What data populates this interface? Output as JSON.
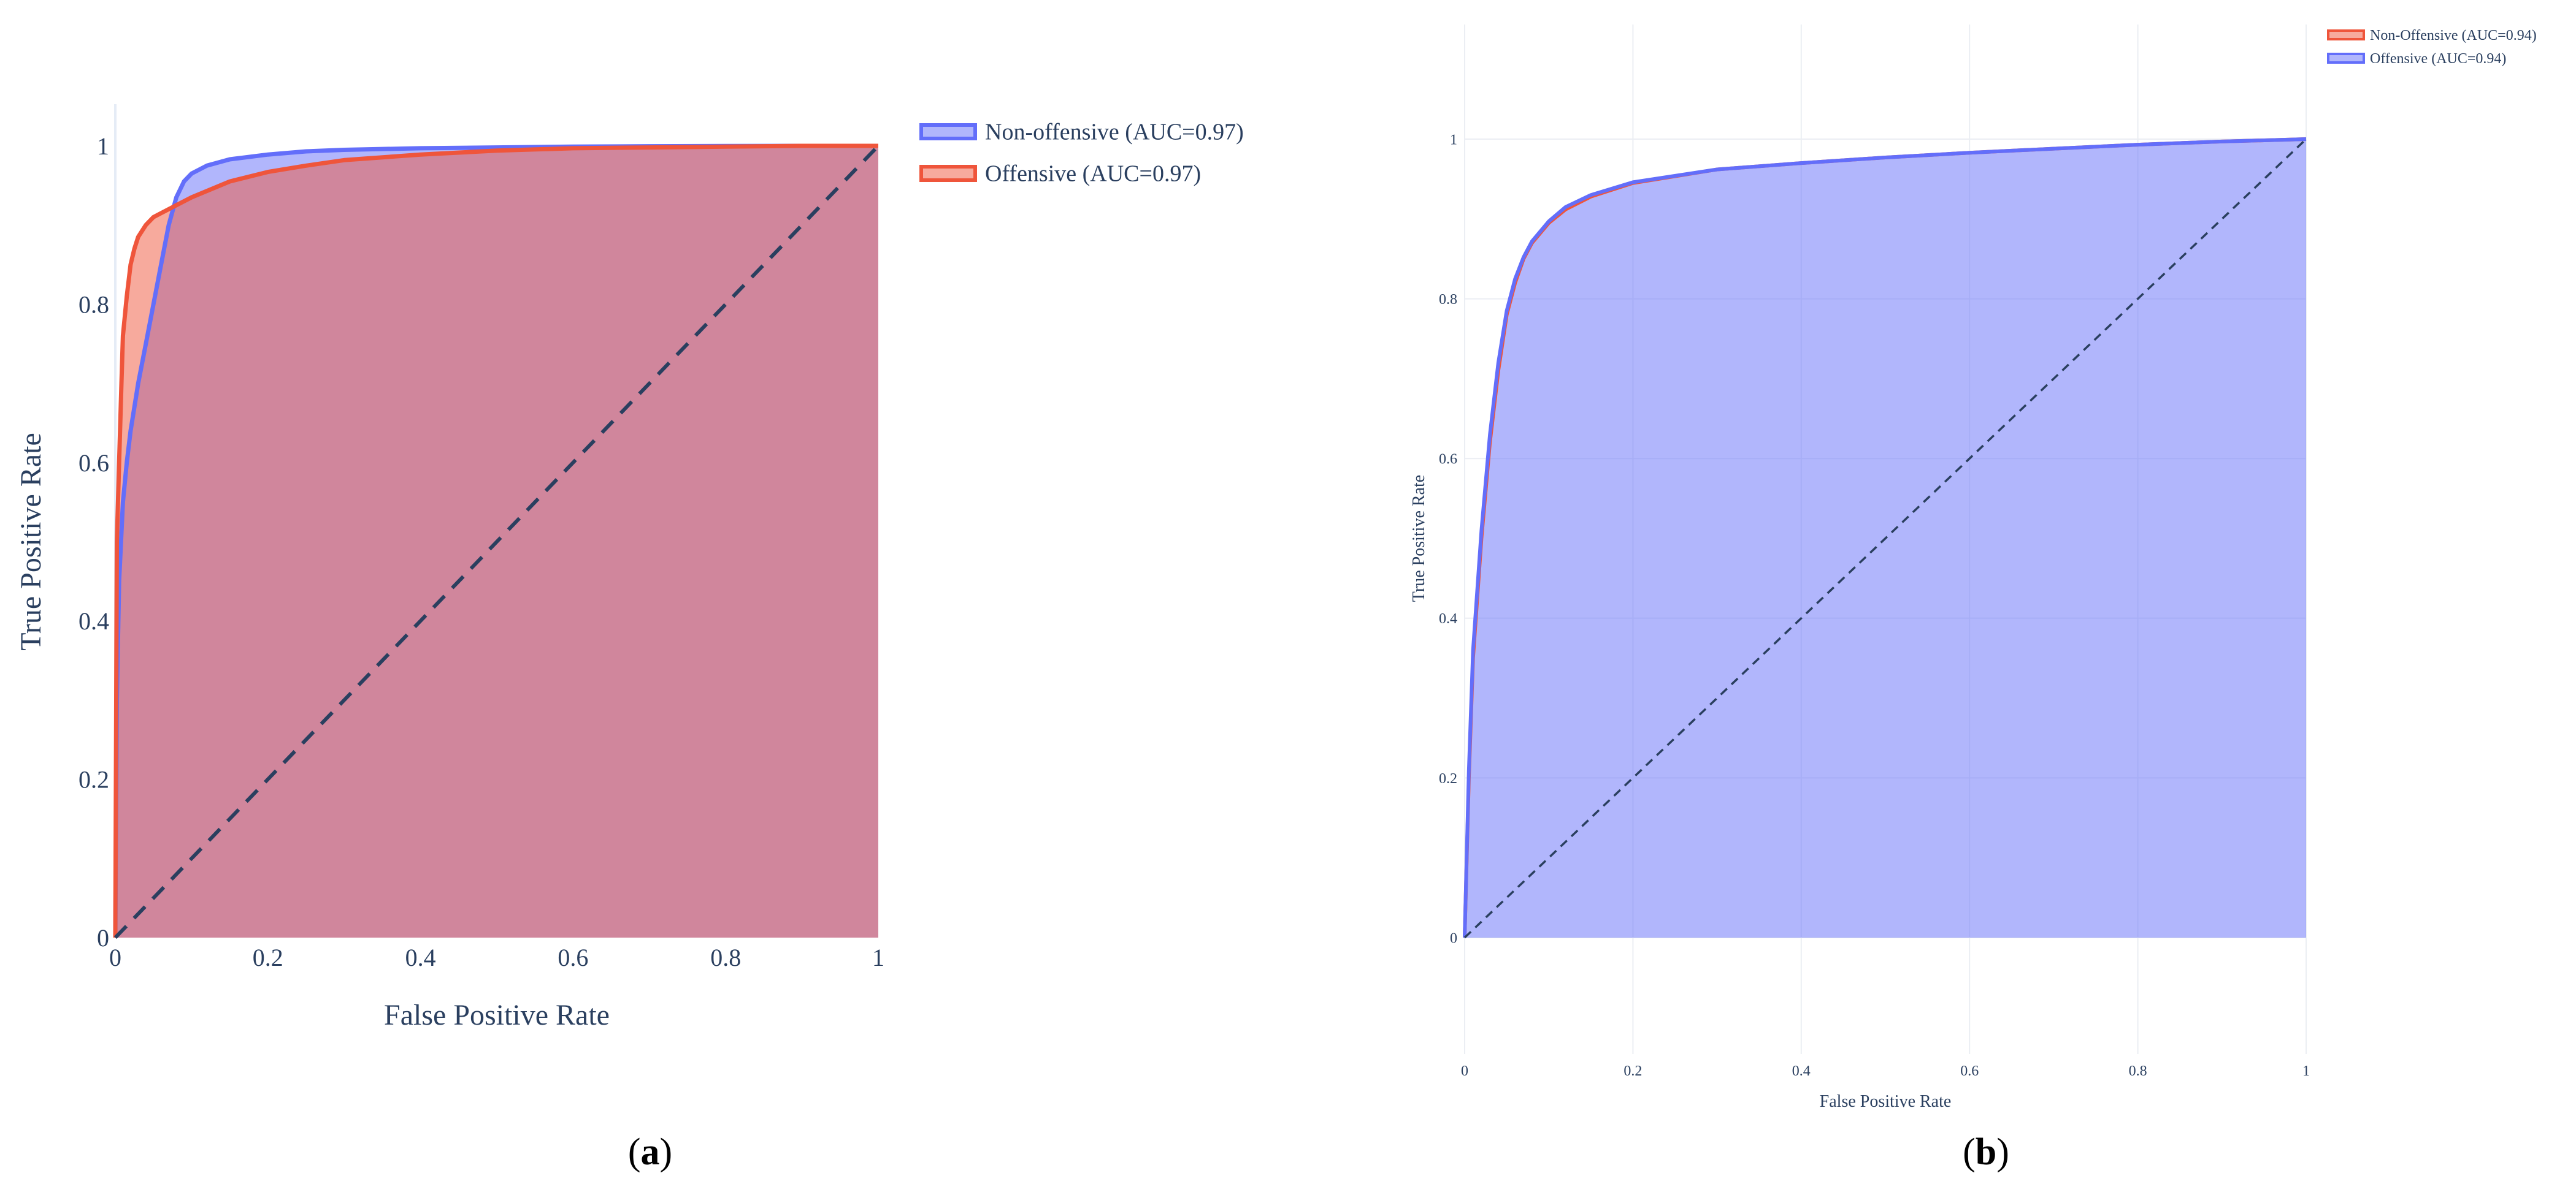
{
  "chart_data": [
    {
      "type": "area",
      "panel_label": "a",
      "xlabel": "False Positive Rate",
      "ylabel": "True Positive Rate",
      "xlim": [
        0,
        1
      ],
      "ylim": [
        0,
        1
      ],
      "x_ticks": [
        0,
        0.2,
        0.4,
        0.6,
        0.8,
        1
      ],
      "x_tick_labels": [
        "0",
        "0.2",
        "0.4",
        "0.6",
        "0.8",
        "1"
      ],
      "y_ticks": [
        0,
        0.2,
        0.4,
        0.6,
        0.8,
        1
      ],
      "y_tick_labels": [
        "0",
        "0.2",
        "0.4",
        "0.6",
        "0.8",
        "1"
      ],
      "grid": false,
      "legend_position": "top-right, outside plot",
      "series": [
        {
          "name": "Non-offensive (AUC=0.97)",
          "color": "#636efa",
          "fill": true,
          "x": [
            0,
            0.002,
            0.005,
            0.01,
            0.015,
            0.02,
            0.03,
            0.04,
            0.05,
            0.06,
            0.07,
            0.08,
            0.09,
            0.1,
            0.12,
            0.15,
            0.2,
            0.25,
            0.3,
            0.4,
            0.5,
            0.6,
            0.7,
            0.8,
            0.9,
            1.0
          ],
          "y": [
            0,
            0.3,
            0.45,
            0.55,
            0.6,
            0.64,
            0.7,
            0.75,
            0.8,
            0.85,
            0.9,
            0.935,
            0.955,
            0.965,
            0.975,
            0.983,
            0.989,
            0.993,
            0.995,
            0.997,
            0.998,
            0.999,
            0.9995,
            0.9998,
            1.0,
            1.0
          ]
        },
        {
          "name": "Offensive (AUC=0.97)",
          "color": "#ef553b",
          "fill": true,
          "x": [
            0,
            0.002,
            0.005,
            0.008,
            0.01,
            0.015,
            0.02,
            0.025,
            0.03,
            0.04,
            0.05,
            0.06,
            0.08,
            0.1,
            0.15,
            0.2,
            0.25,
            0.3,
            0.4,
            0.5,
            0.6,
            0.7,
            0.8,
            0.9,
            1.0
          ],
          "y": [
            0,
            0.5,
            0.6,
            0.7,
            0.76,
            0.81,
            0.85,
            0.87,
            0.885,
            0.9,
            0.91,
            0.915,
            0.925,
            0.935,
            0.955,
            0.967,
            0.975,
            0.982,
            0.989,
            0.994,
            0.997,
            0.998,
            0.999,
            1.0,
            1.0
          ]
        },
        {
          "name": "",
          "color": "#2a3f5f",
          "style": "dash",
          "x": [
            0,
            1
          ],
          "y": [
            0,
            1
          ]
        }
      ]
    },
    {
      "type": "area",
      "panel_label": "b",
      "xlabel": "False Positive Rate",
      "ylabel": "True Positive Rate",
      "xlim": [
        0,
        1
      ],
      "ylim": [
        -0.1,
        1.15
      ],
      "x_ticks": [
        0,
        0.2,
        0.4,
        0.6,
        0.8,
        1
      ],
      "x_tick_labels": [
        "0",
        "0.2",
        "0.4",
        "0.6",
        "0.8",
        "1"
      ],
      "y_ticks": [
        0,
        0.2,
        0.4,
        0.6,
        0.8,
        1
      ],
      "y_tick_labels": [
        "0",
        "0.2",
        "0.4",
        "0.6",
        "0.8",
        "1"
      ],
      "grid": true,
      "legend_position": "top-right",
      "series": [
        {
          "name": "Non-Offensive (AUC=0.94)",
          "color": "#ef553b",
          "fill": false,
          "x": [
            0,
            0.005,
            0.01,
            0.02,
            0.03,
            0.04,
            0.05,
            0.06,
            0.07,
            0.08,
            0.1,
            0.12,
            0.15,
            0.2,
            0.3,
            0.4,
            0.5,
            0.6,
            0.7,
            0.8,
            0.9,
            1.0
          ],
          "y": [
            0,
            0.2,
            0.35,
            0.5,
            0.62,
            0.71,
            0.78,
            0.82,
            0.85,
            0.87,
            0.895,
            0.912,
            0.928,
            0.945,
            0.962,
            0.97,
            0.977,
            0.983,
            0.988,
            0.993,
            0.997,
            1.0
          ]
        },
        {
          "name": "Offensive (AUC=0.94)",
          "color": "#636efa",
          "fill": true,
          "x": [
            0,
            0.005,
            0.01,
            0.02,
            0.03,
            0.04,
            0.05,
            0.06,
            0.07,
            0.08,
            0.1,
            0.12,
            0.15,
            0.2,
            0.3,
            0.4,
            0.5,
            0.6,
            0.7,
            0.8,
            0.9,
            1.0
          ],
          "y": [
            0,
            0.21,
            0.36,
            0.51,
            0.63,
            0.72,
            0.785,
            0.825,
            0.852,
            0.872,
            0.897,
            0.915,
            0.93,
            0.946,
            0.962,
            0.97,
            0.977,
            0.983,
            0.988,
            0.993,
            0.997,
            1.0
          ]
        },
        {
          "name": "",
          "color": "#2a3f5f",
          "style": "dash",
          "x": [
            0,
            1
          ],
          "y": [
            0,
            1
          ]
        }
      ]
    }
  ]
}
